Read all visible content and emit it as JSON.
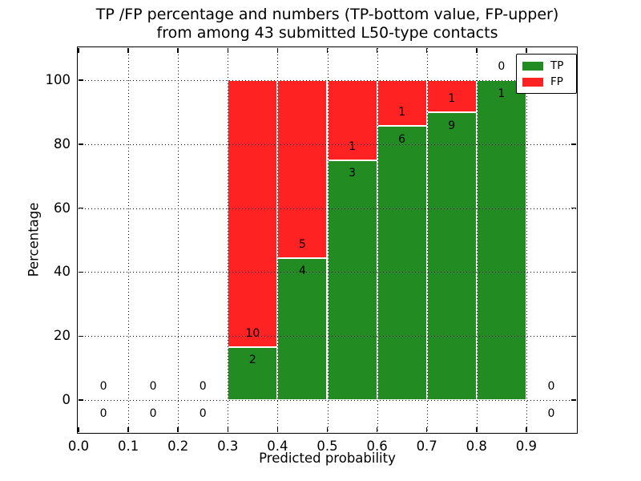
{
  "chart_data": {
    "type": "bar",
    "stacked": true,
    "title_lines": [
      "TP /FP percentage and numbers (TP-bottom value, FP-upper)",
      "from among 43 submitted L50-type contacts"
    ],
    "xlabel": "Predicted probability",
    "ylabel": "Percentage",
    "xlim": [
      0.0,
      1.0
    ],
    "ylim": [
      -10,
      110
    ],
    "xtick_labels": [
      "0.0",
      "0.1",
      "0.2",
      "0.3",
      "0.4",
      "0.5",
      "0.6",
      "0.7",
      "0.8",
      "0.9"
    ],
    "ytick_labels": [
      "0",
      "20",
      "40",
      "60",
      "80",
      "100"
    ],
    "grid": true,
    "grid_style": "dotted",
    "total_contacts": 43,
    "bins": [
      {
        "range": [
          0.0,
          0.1
        ],
        "tp": 0,
        "fp": 0
      },
      {
        "range": [
          0.1,
          0.2
        ],
        "tp": 0,
        "fp": 0
      },
      {
        "range": [
          0.2,
          0.3
        ],
        "tp": 0,
        "fp": 0
      },
      {
        "range": [
          0.3,
          0.4
        ],
        "tp": 2,
        "fp": 10
      },
      {
        "range": [
          0.4,
          0.5
        ],
        "tp": 4,
        "fp": 5
      },
      {
        "range": [
          0.5,
          0.6
        ],
        "tp": 3,
        "fp": 1
      },
      {
        "range": [
          0.6,
          0.7
        ],
        "tp": 6,
        "fp": 1
      },
      {
        "range": [
          0.7,
          0.8
        ],
        "tp": 9,
        "fp": 1
      },
      {
        "range": [
          0.8,
          0.9
        ],
        "tp": 1,
        "fp": 0
      },
      {
        "range": [
          0.9,
          1.0
        ],
        "tp": 0,
        "fp": 0
      }
    ],
    "colors": {
      "tp": "#228b22",
      "fp": "#ff2222",
      "axis": "#000000",
      "background": "#ffffff"
    },
    "legend": {
      "position": "upper-right",
      "entries": [
        {
          "label": "TP",
          "color": "#228b22"
        },
        {
          "label": "FP",
          "color": "#ff2222"
        }
      ]
    }
  }
}
